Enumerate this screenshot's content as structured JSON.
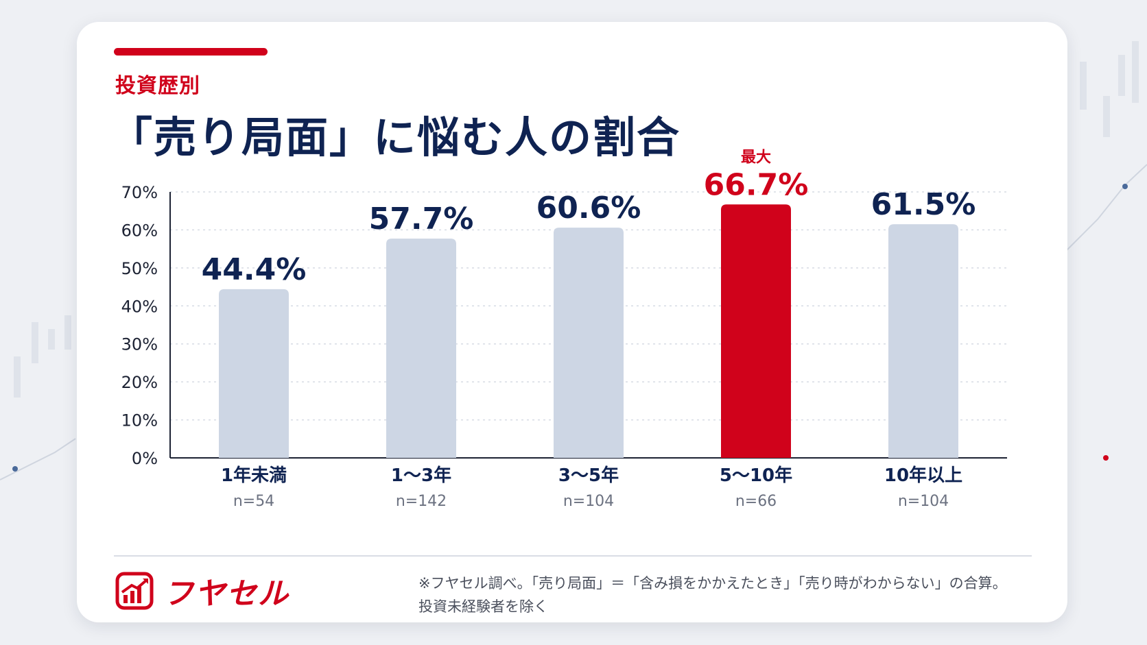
{
  "header": {
    "subtitle": "投資歴別",
    "title": "「売り局面」に悩む人の割合"
  },
  "chart_data": {
    "type": "bar",
    "categories": [
      "1年未満",
      "1〜3年",
      "3〜5年",
      "5〜10年",
      "10年以上"
    ],
    "sample_sizes": [
      "n=54",
      "n=142",
      "n=104",
      "n=66",
      "n=104"
    ],
    "values": [
      44.4,
      57.7,
      60.6,
      66.7,
      61.5
    ],
    "value_labels": [
      "44.4%",
      "57.7%",
      "60.6%",
      "66.7%",
      "61.5%"
    ],
    "ylim": [
      0,
      70
    ],
    "yticks": [
      0,
      10,
      20,
      30,
      40,
      50,
      60,
      70
    ],
    "ytick_labels": [
      "0%",
      "10%",
      "20%",
      "30%",
      "40%",
      "50%",
      "60%",
      "70%"
    ],
    "highlight_index": 3,
    "highlight_label": "最大",
    "grid": "dotted horizontal",
    "colors": {
      "bar": "#cdd6e4",
      "highlight": "#d0021b",
      "value_label": "#0f2352",
      "axis": "#1c2233"
    }
  },
  "footer": {
    "logo_text": "フヤセル",
    "note_line1": "※フヤセル調べ。「売り局面」＝「含み損をかかえたとき」「売り時がわからない」の合算。",
    "note_line2": "投資未経験者を除く"
  },
  "colors": {
    "brand_red": "#d0021b",
    "navy": "#0f2352",
    "background": "#eef0f4"
  }
}
